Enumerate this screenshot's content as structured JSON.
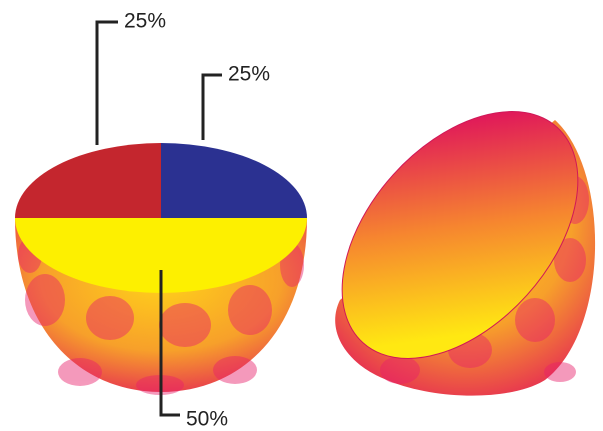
{
  "chart_data": {
    "type": "pie",
    "values": [
      25,
      25,
      50
    ],
    "value_labels": [
      "25%",
      "25%",
      "50%"
    ],
    "colors": [
      "#c4262e",
      "#2b3191",
      "#fdf000"
    ]
  }
}
